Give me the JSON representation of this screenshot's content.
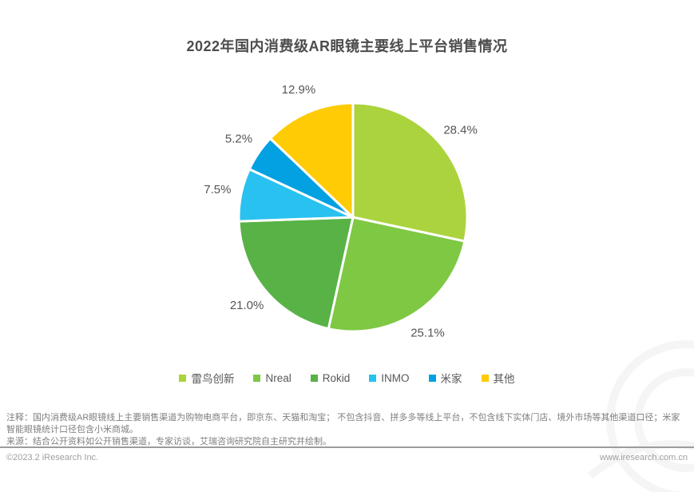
{
  "title": "2022年国内消费级AR眼镜主要线上平台销售情况",
  "chart_data": {
    "type": "pie",
    "title": "2022年国内消费级AR眼镜主要线上平台销售情况",
    "categories": [
      "雷鸟创新",
      "Nreal",
      "Rokid",
      "INMO",
      "米家",
      "其他"
    ],
    "slugs": [
      "leiniao-chuangxin",
      "nreal",
      "rokid",
      "inmo",
      "mijia",
      "other"
    ],
    "values": [
      28.4,
      25.1,
      21.0,
      7.5,
      5.2,
      12.9
    ],
    "labels": [
      "28.4%",
      "25.1%",
      "21.0%",
      "7.5%",
      "5.2%",
      "12.9%"
    ],
    "colors": [
      "#ABD33D",
      "#7EC843",
      "#58B246",
      "#29C1F0",
      "#04A1E2",
      "#FECB05"
    ],
    "start_angle_deg": -90,
    "direction": "clockwise",
    "legend_position": "bottom",
    "slice_border_color": "#ffffff",
    "label_color": "#565656"
  },
  "footer": {
    "note": "注释：国内消费级AR眼镜线上主要销售渠道为购物电商平台，即京东、天猫和淘宝； 不包含抖音、拼多多等线上平台，不包含线下实体门店、境外市场等其他渠道口径；米家智能眼镜统计口径包含小米商城。",
    "source": "来源：结合公开资料如公开销售渠道，专家访谈，艾瑞咨询研究院自主研究并绘制。",
    "copyright": "©2023.2 iResearch Inc.",
    "website": "www.iresearch.com.cn"
  }
}
